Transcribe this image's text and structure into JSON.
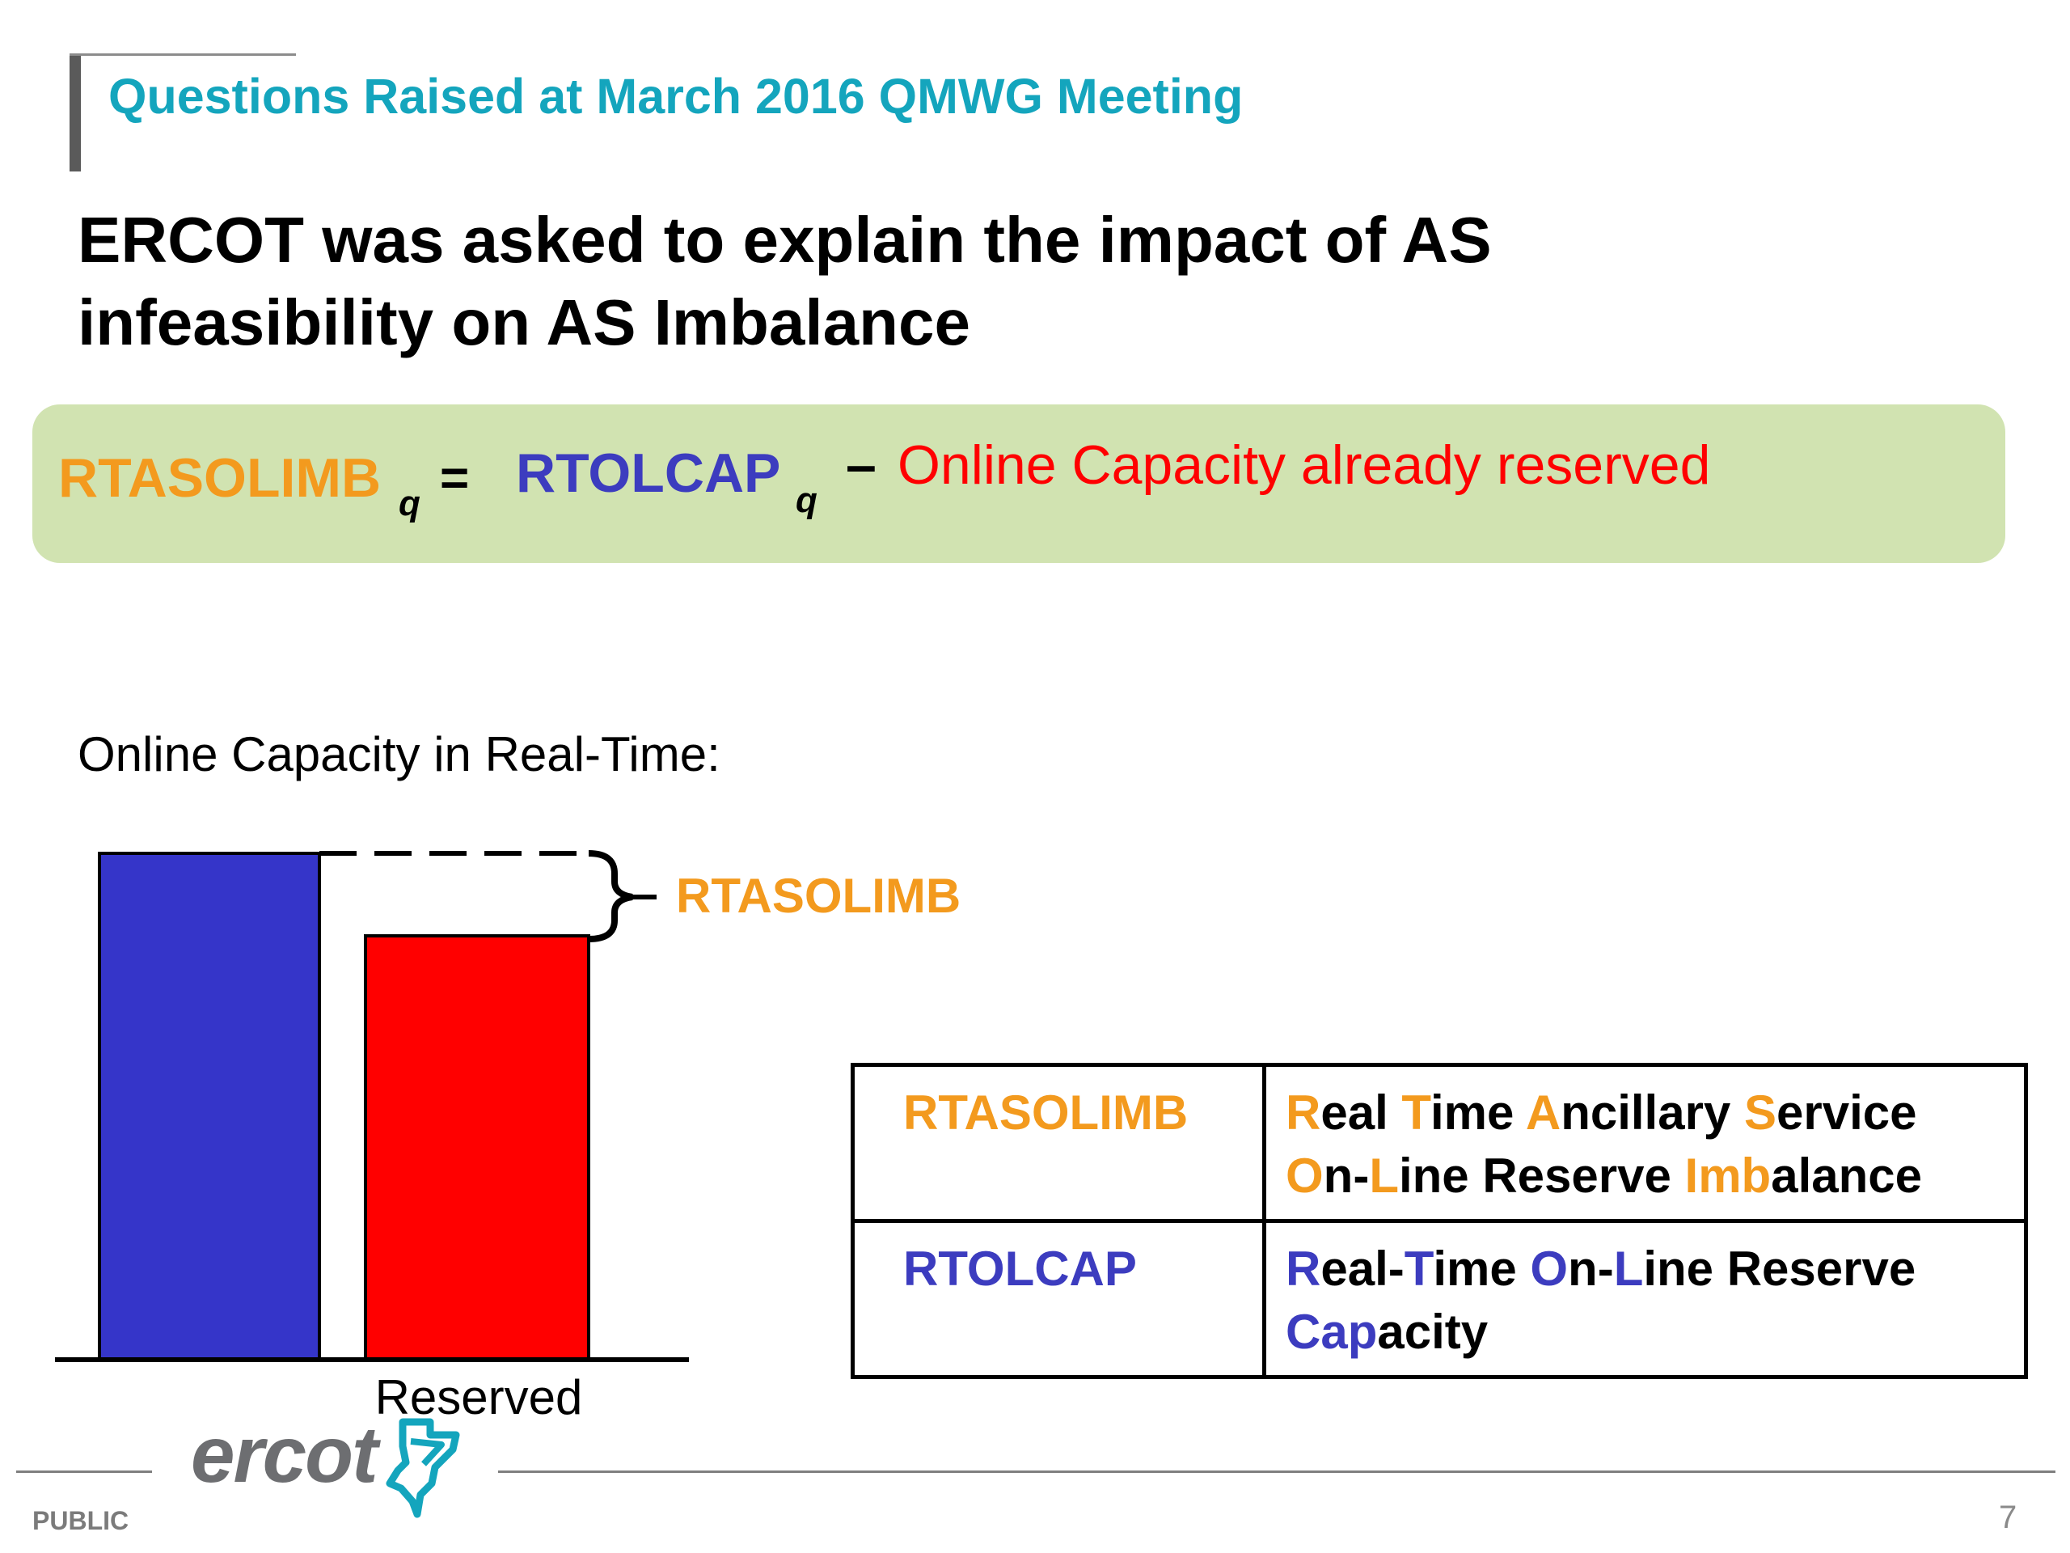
{
  "slide": {
    "title": "Questions Raised at March 2016 QMWG Meeting",
    "headline": "ERCOT was asked to explain the impact of AS infeasibility on AS Imbalance"
  },
  "formula": {
    "lhs": "RTASOLIMB",
    "lhs_subscript": "q",
    "equals": "=",
    "rhs_term": "RTOLCAP",
    "rhs_subscript": "q",
    "minus": "–",
    "rhs_text": "Online Capacity already reserved",
    "colors": {
      "lhs": "#f39a1e",
      "rhs_term": "#3c3cbf",
      "rhs_text": "#ff0000",
      "box": "#d1e3b1"
    }
  },
  "diagram": {
    "label": "Online Capacity in Real-Time:",
    "bar_caption": "Reserved",
    "bracket_label": "RTASOLIMB",
    "bars": [
      {
        "name": "online-capacity",
        "relative_height": 1.0,
        "color": "#3535c9"
      },
      {
        "name": "reserved",
        "relative_height": 0.84,
        "color": "#ff0000"
      }
    ]
  },
  "legend": {
    "rows": [
      {
        "acronym": "RTASOLIMB",
        "acronym_color": "orange",
        "definition": [
          {
            "t": "R",
            "c": "orange"
          },
          {
            "t": "eal ",
            "c": "black"
          },
          {
            "t": "T",
            "c": "orange"
          },
          {
            "t": "ime ",
            "c": "black"
          },
          {
            "t": "A",
            "c": "orange"
          },
          {
            "t": "ncillary ",
            "c": "black"
          },
          {
            "t": "S",
            "c": "orange"
          },
          {
            "t": "ervice ",
            "c": "black"
          },
          {
            "t": "O",
            "c": "orange"
          },
          {
            "t": "n-",
            "c": "black"
          },
          {
            "t": "L",
            "c": "orange"
          },
          {
            "t": "ine Reserve ",
            "c": "black"
          },
          {
            "t": "Imb",
            "c": "orange"
          },
          {
            "t": "alance",
            "c": "black"
          }
        ]
      },
      {
        "acronym": "RTOLCAP",
        "acronym_color": "blue",
        "definition": [
          {
            "t": "R",
            "c": "blue"
          },
          {
            "t": "eal-",
            "c": "black"
          },
          {
            "t": "T",
            "c": "blue"
          },
          {
            "t": "ime ",
            "c": "black"
          },
          {
            "t": "O",
            "c": "blue"
          },
          {
            "t": "n-",
            "c": "black"
          },
          {
            "t": "L",
            "c": "blue"
          },
          {
            "t": "ine Reserve ",
            "c": "black"
          },
          {
            "t": "Cap",
            "c": "blue"
          },
          {
            "t": "acity",
            "c": "black"
          }
        ]
      }
    ]
  },
  "footer": {
    "logo_text": "ercot",
    "logo_icon": "texas-state-logo-icon",
    "classification": "PUBLIC",
    "page_number": "7"
  }
}
